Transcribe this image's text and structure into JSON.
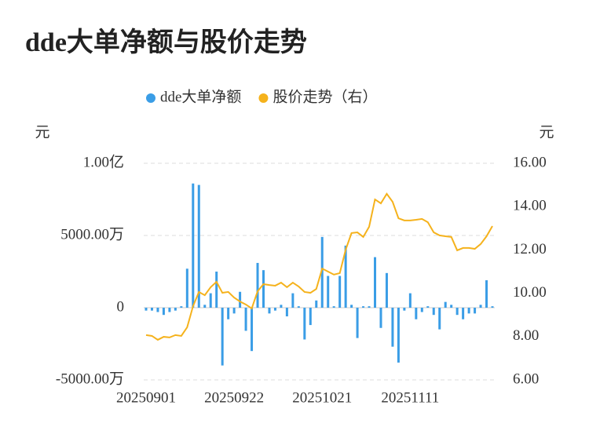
{
  "chart_data": {
    "type": "bar",
    "title": "dde大单净额与股价走势",
    "y_axis_label": "元",
    "y2_axis_label": "元",
    "categories": [
      "20250901",
      null,
      null,
      null,
      null,
      null,
      null,
      null,
      null,
      null,
      null,
      null,
      null,
      null,
      null,
      "20250922",
      null,
      null,
      null,
      null,
      null,
      null,
      null,
      null,
      null,
      null,
      null,
      null,
      null,
      null,
      "20251021",
      null,
      null,
      null,
      null,
      null,
      null,
      null,
      null,
      null,
      null,
      null,
      null,
      null,
      null,
      "20251111",
      null,
      null,
      null,
      null,
      null,
      null,
      null,
      null,
      null,
      null,
      null,
      null,
      null,
      null
    ],
    "series": [
      {
        "name": "dde大单净额",
        "type": "bar",
        "color": "#3a9de6",
        "values": [
          -200,
          -200,
          -300,
          -500,
          -300,
          -200,
          100,
          2700,
          8600,
          8500,
          200,
          1000,
          2500,
          -4000,
          -800,
          -400,
          1100,
          -1600,
          -3000,
          3100,
          2600,
          -400,
          -200,
          200,
          -600,
          1000,
          100,
          -2200,
          -1200,
          500,
          4900,
          2200,
          100,
          2200,
          4300,
          200,
          -2100,
          100,
          100,
          3500,
          -1400,
          2400,
          -2700,
          -3800,
          -200,
          1000,
          -800,
          -300,
          100,
          -500,
          -1500,
          400,
          200,
          -500,
          -800,
          -400,
          -400,
          200,
          1900,
          100
        ]
      },
      {
        "name": "股价走势（右）",
        "type": "line",
        "axis": "y2",
        "color": "#f5b21c",
        "values": [
          8.07,
          8.03,
          7.85,
          7.99,
          7.96,
          8.07,
          8.03,
          8.43,
          9.4,
          10.06,
          9.91,
          10.28,
          10.53,
          10.02,
          10.06,
          9.8,
          9.62,
          9.48,
          9.3,
          10.09,
          10.42,
          10.38,
          10.35,
          10.49,
          10.28,
          10.49,
          10.31,
          10.06,
          10.02,
          10.2,
          11.14,
          11.0,
          10.86,
          10.93,
          12.01,
          12.78,
          12.81,
          12.6,
          13.07,
          14.33,
          14.15,
          14.59,
          14.22,
          13.46,
          13.36,
          13.36,
          13.39,
          13.43,
          13.28,
          12.81,
          12.67,
          12.63,
          12.6,
          11.98,
          12.09,
          12.09,
          12.05,
          12.27,
          12.63,
          13.1
        ]
      }
    ],
    "ylim": [
      -5000,
      10000
    ],
    "yticks": [
      {
        "value": -5000,
        "label": "-5000.00万"
      },
      0,
      {
        "value": 5000,
        "label": "5000.00万"
      },
      {
        "value": 10000,
        "label": "1.00亿"
      }
    ],
    "y2lim": [
      6,
      16
    ],
    "y2ticks": [
      {
        "value": 6,
        "label": "6.00"
      },
      {
        "value": 8,
        "label": "8.00"
      },
      {
        "value": 10,
        "label": "10.00"
      },
      {
        "value": 12,
        "label": "12.00"
      },
      {
        "value": 14,
        "label": "14.00"
      },
      {
        "value": 16,
        "label": "16.00"
      }
    ],
    "grid": true,
    "legend": "top"
  }
}
